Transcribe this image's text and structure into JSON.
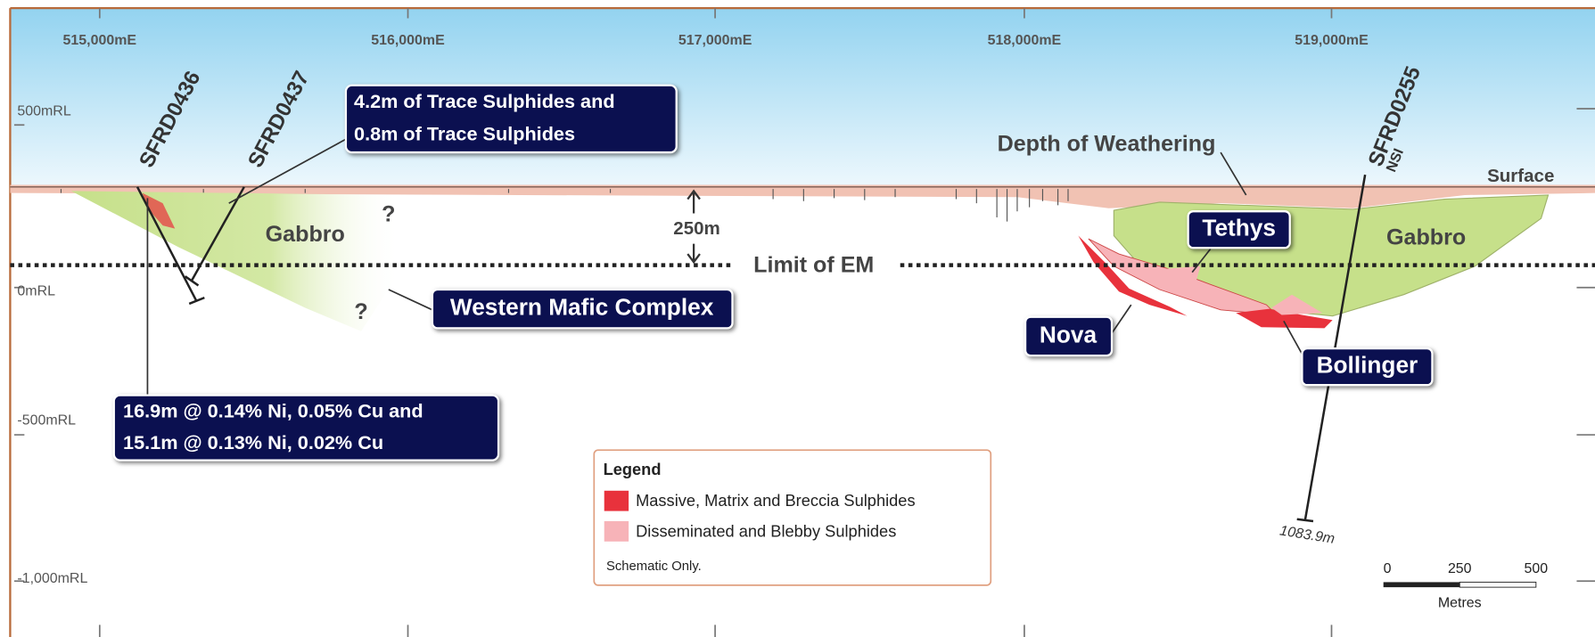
{
  "axes": {
    "easting": [
      "515,000mE",
      "516,000mE",
      "517,000mE",
      "518,000mE",
      "519,000mE"
    ],
    "rl": [
      "500mRL",
      "0mRL",
      "-500mRL",
      "-1,000mRL"
    ]
  },
  "drillholes": [
    {
      "label": "SFRD0436"
    },
    {
      "label": "SFRD0437"
    },
    {
      "label": "SFRD0255",
      "note": "NSI",
      "depth": "1083.9m"
    }
  ],
  "callouts": [
    {
      "lines": [
        "4.2m of Trace Sulphides and",
        "0.8m of Trace Sulphides"
      ]
    },
    {
      "lines": [
        "16.9m @ 0.14% Ni, 0.05% Cu and",
        "15.1m @ 0.13% Ni, 0.02% Cu"
      ]
    }
  ],
  "labels": {
    "depth_of_weathering": "Depth of Weathering",
    "surface": "Surface",
    "gabbro_west": "Gabbro",
    "gabbro_east": "Gabbro",
    "question_1": "?",
    "question_2": "?",
    "depth_250": "250m",
    "limit_em": "Limit of EM",
    "western_mafic": "Western Mafic Complex",
    "tethys": "Tethys",
    "nova": "Nova",
    "bollinger": "Bollinger"
  },
  "legend": {
    "title": "Legend",
    "items": [
      {
        "label": "Massive, Matrix and Breccia Sulphides",
        "color": "#e8323c"
      },
      {
        "label": "Disseminated and Blebby Sulphides",
        "color": "#f7b3b8"
      }
    ],
    "note": "Schematic Only."
  },
  "scale_bar": {
    "ticks": [
      "0",
      "250",
      "500"
    ],
    "unit": "Metres"
  }
}
